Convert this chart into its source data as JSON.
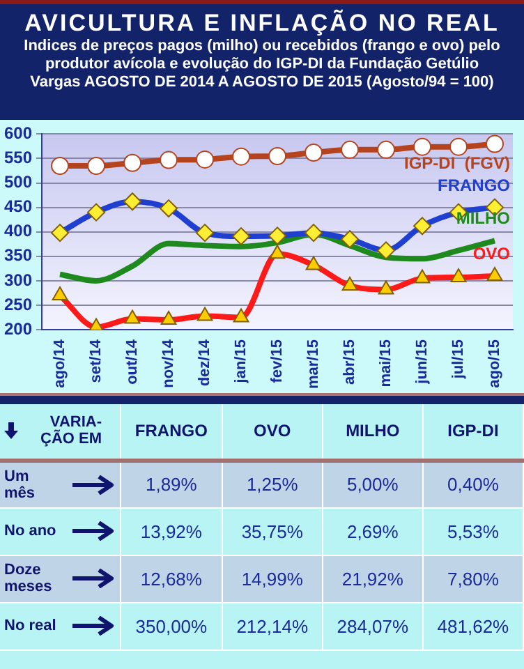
{
  "chart_data": {
    "type": "line",
    "title": "AVICULTURA E INFLAÇÃO NO REAL",
    "subtitle": "Indices de preços pagos (milho) ou recebidos (frango e ovo) pelo produtor avícola e evolução do IGP-DI da Fundação Getúlio Vargas AGOSTO DE 2014 A AGOSTO DE 2015 (Agosto/94 = 100)",
    "categories": [
      "ago/14",
      "set/14",
      "out/14",
      "nov/14",
      "dez/14",
      "jan/15",
      "fev/15",
      "mar/15",
      "abr/15",
      "mai/15",
      "jun/15",
      "jul/15",
      "ago/15"
    ],
    "series": [
      {
        "name": "IGP-DI  (FGV)",
        "color": "#b5441e",
        "marker": "circle",
        "values": [
          535,
          535,
          541,
          547,
          548,
          554,
          555,
          562,
          568,
          568,
          574,
          574,
          580
        ]
      },
      {
        "name": "FRANGO",
        "color": "#1f3fd0",
        "marker": "diamond",
        "values": [
          398,
          440,
          462,
          448,
          398,
          391,
          392,
          398,
          385,
          362,
          412,
          440,
          450
        ]
      },
      {
        "name": "MILHO",
        "color": "#1e8a1e",
        "marker": "none",
        "values": [
          313,
          300,
          330,
          376,
          372,
          370,
          378,
          395,
          372,
          348,
          345,
          362,
          382
        ]
      },
      {
        "name": "OVO",
        "color": "#ff1a1a",
        "marker": "triangle",
        "values": [
          270,
          205,
          222,
          220,
          228,
          225,
          355,
          332,
          290,
          282,
          305,
          307,
          310
        ]
      }
    ],
    "ylim": [
      200,
      600
    ],
    "yticks": [
      200,
      250,
      300,
      350,
      400,
      450,
      500,
      550,
      600
    ],
    "grid": "y",
    "legend": false,
    "annotations": [
      "VARIA-ÇÃO EM",
      "FRANGO",
      "OVO",
      "MILHO",
      "IGP-DI",
      "Um mês",
      "1,89%",
      "1,25%",
      "5,00%",
      "0,40%",
      "No ano",
      "13,92%",
      "35,75%",
      "2,69%",
      "5,53%",
      "Doze meses",
      "12,68%",
      "14,99%",
      "21,92%",
      "7,80%",
      "No real",
      "350,00%",
      "212,14%",
      "284,07%",
      "481,62%"
    ]
  }
}
